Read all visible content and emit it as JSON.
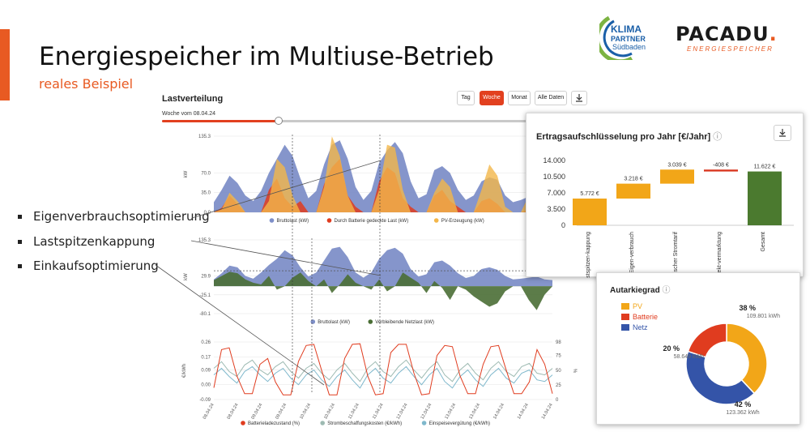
{
  "slide": {
    "title": "Energiespeicher im Multiuse-Betrieb",
    "subtitle": "reales Beispiel"
  },
  "logos": {
    "klima": [
      "KLIMA",
      "PARTNER",
      "Südbaden"
    ],
    "pacadu_word": "PACADU",
    "pacadu_dot": ".",
    "pacadu_sub": "ENERGIESPEICHER"
  },
  "bullets": [
    "Eigenverbrauchsoptimierung",
    "Lastspitzenkappung",
    "Einkaufsoptimierung"
  ],
  "colors": {
    "accent": "#e85a22",
    "active_button": "#e2401f",
    "bruttolast": "#7e8fc8",
    "battery": "#e03c1f",
    "pv": "#f3b64a",
    "netzlast": "#4a6e35",
    "strompreis": "#9dbab2",
    "einspeise": "#7fb8cc",
    "bar_orange": "#f2a618",
    "bar_green": "#4b7a2f",
    "bar_red": "#d9341c",
    "donut_pv": "#f2a618",
    "donut_batterie": "#e03c1f",
    "donut_netz": "#3454a8"
  },
  "dashboard": {
    "title": "Lastverteilung",
    "week_label": "Woche vom 08.04.24",
    "buttons": [
      {
        "label": "Tag",
        "active": false
      },
      {
        "label": "Woche",
        "active": true
      },
      {
        "label": "Monat",
        "active": false
      },
      {
        "label": "Alle Daten",
        "active": false
      },
      {
        "label": "download-icon",
        "active": false
      }
    ],
    "slider_position": 0.32
  },
  "chart_data": [
    {
      "type": "area",
      "title": "",
      "ylabel": "kW",
      "yticks": [
        "0.0",
        "35.0",
        "70.0",
        "135.3"
      ],
      "ylim": [
        0,
        135.3
      ],
      "series": [
        {
          "name": "Bruttolast (kW)",
          "values": [
            18,
            40,
            65,
            52,
            30,
            20,
            38,
            70,
            95,
            120,
            100,
            60,
            25,
            38,
            85,
            120,
            128,
            95,
            45,
            22,
            38,
            88,
            110,
            125,
            105,
            55,
            25,
            32,
            75,
            82,
            70,
            40,
            22,
            30,
            55,
            62,
            58,
            30,
            18,
            22,
            28,
            30,
            20,
            18
          ]
        },
        {
          "name": "Durch Batterie gedeckte Last (kW)",
          "values": [
            0,
            8,
            30,
            15,
            0,
            0,
            0,
            40,
            60,
            25,
            10,
            20,
            0,
            0,
            50,
            80,
            95,
            30,
            10,
            0,
            0,
            55,
            80,
            70,
            25,
            10,
            0,
            0,
            30,
            40,
            20,
            10,
            0,
            0,
            20,
            25,
            15,
            0,
            0,
            0,
            5,
            8,
            0,
            0
          ]
        },
        {
          "name": "PV-Erzeugung (kW)",
          "values": [
            0,
            5,
            35,
            20,
            0,
            0,
            0,
            20,
            95,
            80,
            30,
            0,
            0,
            0,
            45,
            135,
            100,
            30,
            0,
            0,
            0,
            40,
            120,
            115,
            40,
            0,
            0,
            0,
            35,
            60,
            45,
            0,
            0,
            0,
            40,
            85,
            65,
            10,
            0,
            0,
            30,
            85,
            40,
            0
          ]
        }
      ]
    },
    {
      "type": "area",
      "title": "",
      "ylabel": "kW",
      "yticks": [
        "-80.1",
        "-25.1",
        "29.9",
        "135.3"
      ],
      "ylim": [
        -80.1,
        135.3
      ],
      "reference_line": 45,
      "series": [
        {
          "name": "Bruttolast (kW)",
          "values": [
            20,
            38,
            60,
            55,
            30,
            22,
            40,
            62,
            80,
            105,
            90,
            55,
            28,
            40,
            75,
            110,
            115,
            85,
            40,
            25,
            40,
            80,
            105,
            112,
            95,
            50,
            28,
            35,
            70,
            75,
            60,
            38,
            24,
            30,
            50,
            55,
            48,
            30,
            20,
            22,
            25,
            28,
            20,
            18
          ]
        },
        {
          "name": "Verbleibende Netzlast (kW)",
          "values": [
            18,
            30,
            42,
            38,
            20,
            10,
            5,
            30,
            -10,
            0,
            25,
            40,
            15,
            0,
            20,
            -20,
            5,
            35,
            10,
            0,
            -10,
            20,
            -15,
            0,
            40,
            25,
            10,
            -20,
            15,
            -5,
            -40,
            0,
            -10,
            -30,
            -45,
            -60,
            -50,
            -15,
            0,
            0,
            -40,
            -70,
            -25,
            0
          ]
        }
      ]
    },
    {
      "type": "line",
      "title": "",
      "ylabel": "€/kWh",
      "y2label": "%",
      "yticks": [
        "-0.09",
        "0.00",
        "0.09",
        "0.17",
        "0.26"
      ],
      "y2ticks": [
        "0",
        "25",
        "50",
        "75",
        "98"
      ],
      "ylim": [
        -0.09,
        0.26
      ],
      "y2lim": [
        0,
        98
      ],
      "xticks": [
        "08.04.24",
        "08.04.24",
        "09.04.24",
        "09.04.24",
        "10.04.24",
        "10.04.24",
        "11.04.24",
        "11.04.24",
        "12.04.24",
        "12.04.24",
        "13.04.24",
        "13.04.24",
        "14.04.24",
        "14.04.24",
        "14.04.24"
      ],
      "series": [
        {
          "name": "Batterieladezustand (%)",
          "axis": "y2",
          "values": [
            20,
            85,
            88,
            40,
            10,
            10,
            60,
            70,
            30,
            8,
            8,
            65,
            92,
            94,
            50,
            8,
            8,
            70,
            94,
            95,
            40,
            8,
            10,
            80,
            94,
            94,
            45,
            8,
            10,
            75,
            92,
            90,
            40,
            10,
            10,
            60,
            90,
            92,
            50,
            10,
            10,
            30,
            85,
            60,
            10
          ]
        },
        {
          "name": "Strombeschaffungskosten (€/kWh)",
          "axis": "y1",
          "values": [
            0.1,
            0.14,
            0.08,
            0.05,
            0.12,
            0.15,
            0.09,
            0.06,
            0.11,
            0.14,
            0.08,
            0.04,
            0.1,
            0.13,
            0.07,
            0.03,
            0.09,
            0.13,
            0.07,
            0.02,
            0.1,
            0.14,
            0.08,
            0.05,
            0.11,
            0.15,
            0.09,
            0.04,
            0.1,
            0.14,
            0.06,
            0.02,
            0.09,
            0.13,
            0.07,
            0.03,
            0.1,
            0.14,
            0.08,
            0.05,
            0.11,
            0.13,
            0.07,
            0.06,
            0.1
          ]
        },
        {
          "name": "Einspeisevergütung (€/kWh)",
          "axis": "y1",
          "values": [
            0.06,
            0.1,
            0.05,
            0.01,
            0.08,
            0.11,
            0.06,
            0.02,
            0.07,
            0.1,
            0.04,
            0.0,
            0.06,
            0.09,
            0.03,
            -0.01,
            0.05,
            0.09,
            0.03,
            -0.02,
            0.06,
            0.1,
            0.04,
            0.01,
            0.07,
            0.11,
            0.05,
            0.0,
            0.06,
            0.1,
            0.02,
            -0.02,
            0.05,
            0.09,
            0.03,
            -0.01,
            0.06,
            0.1,
            0.04,
            0.01,
            0.07,
            0.09,
            0.03,
            0.02,
            0.06
          ]
        }
      ]
    },
    {
      "type": "bar",
      "variant": "waterfall",
      "title": "Ertragsaufschlüsselung pro Jahr [€/Jahr]",
      "yticks": [
        "0",
        "3.500",
        "7.000",
        "10.500",
        "14.000"
      ],
      "ylim": [
        0,
        14000
      ],
      "categories": [
        "Lastspitzen-kappung",
        "Eigen-verbrauch",
        "Dynamischer Stromtarif",
        "Direkt-vermarktung",
        "Gesamt"
      ],
      "values": [
        5772,
        3218,
        3039,
        -408,
        11622
      ],
      "value_labels": [
        "5.772 €",
        "3.218 €",
        "3.039 €",
        "-408 €",
        "11.622 €"
      ]
    },
    {
      "type": "pie",
      "variant": "donut",
      "title": "Autarkiegrad",
      "legend": [
        "PV",
        "Batterie",
        "Netz"
      ],
      "slices": [
        {
          "name": "PV",
          "percent": 38,
          "label": "38 %",
          "sub": "109.801 kWh"
        },
        {
          "name": "Netz",
          "percent": 42,
          "label": "42 %",
          "sub": "123.362 kWh"
        },
        {
          "name": "Batterie",
          "percent": 20,
          "label": "20 %",
          "sub": "58.649 kWh"
        }
      ]
    }
  ]
}
